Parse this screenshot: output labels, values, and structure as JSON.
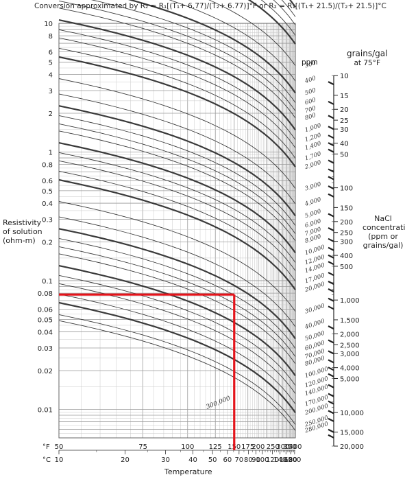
{
  "title": "Conversion approximated by R₂ = R₁[(T₁+ 6.77)/(T₂+ 6.77)]°F or R₂ = R₁[(T₁+ 21.5)/(T₂+ 21.5)]°C",
  "labels": {
    "ylabel": [
      "Resistivity",
      "of solution",
      "(ohm-m)"
    ],
    "xlabel": "Temperature",
    "right_axis_label": [
      "NaCl",
      "concentration",
      "(ppm or",
      "grains/gal)"
    ],
    "grains_head": "grains/gal",
    "grains_sub": "at 75°F",
    "ppm_head": "ppm",
    "f_unit": "°F",
    "c_unit": "°C"
  },
  "colors": {
    "highlight": "#e4141b",
    "curve": "#3a3a3a",
    "grid_minor": "#c9c9c9",
    "grid_major": "#9a9a9a"
  },
  "chart_data": {
    "type": "line",
    "x_scale": "reciprocal (1/(T+6.77))",
    "y_scale": "log",
    "xlabel": "Temperature",
    "ylabel": "Resistivity of solution (ohm-m)",
    "xlim_F": [
      50,
      400
    ],
    "ylim": [
      0.006,
      10
    ],
    "grid": true,
    "y_ticks": [
      0.01,
      0.02,
      0.03,
      0.04,
      0.05,
      0.06,
      0.08,
      0.1,
      0.2,
      0.3,
      0.4,
      0.5,
      0.6,
      0.8,
      1,
      2,
      3,
      4,
      5,
      6,
      8,
      10
    ],
    "y_tick_labels": [
      "0.01",
      "0.02",
      "0.03",
      "0.04",
      "0.05",
      "0.06",
      "0.08",
      "0.1",
      "0.2",
      "0.3",
      "0.4",
      "0.5",
      "0.6",
      "0.8",
      "1",
      "2",
      "3",
      "4",
      "5",
      "6",
      "8",
      "10"
    ],
    "x_ticks_F": [
      50,
      75,
      100,
      125,
      150,
      175,
      200,
      250,
      300,
      350,
      400
    ],
    "x_ticks_C": [
      10,
      20,
      30,
      40,
      50,
      60,
      70,
      80,
      90,
      100,
      120,
      140,
      160,
      180,
      200
    ],
    "x_tick_labels_F": [
      "50",
      "75",
      "100",
      "125",
      "150",
      "175",
      "200",
      "250",
      "300",
      "350",
      "400"
    ],
    "x_tick_labels_C": [
      "10",
      "20",
      "30",
      "40",
      "50",
      "60",
      "70",
      "80",
      "90",
      "100",
      "120",
      "140",
      "160",
      "180",
      "200"
    ],
    "series_ppm": [
      200,
      300,
      400,
      500,
      600,
      700,
      800,
      1000,
      1200,
      1400,
      1700,
      2000,
      3000,
      4000,
      5000,
      6000,
      7000,
      8000,
      10000,
      12000,
      14000,
      17000,
      20000,
      30000,
      40000,
      50000,
      60000,
      70000,
      80000,
      100000,
      120000,
      140000,
      170000,
      200000,
      250000,
      280000
    ],
    "series_labels": [
      "200",
      "300",
      "400",
      "500",
      "600",
      "700",
      "800",
      "1,000",
      "1,200",
      "1,400",
      "1,700",
      "2,000",
      "3,000",
      "4,000",
      "5,000",
      "6,000",
      "7,000",
      "8,000",
      "10,000",
      "12,000",
      "14,000",
      "17,000",
      "20,000",
      "30,000",
      "40,000",
      "50,000",
      "60,000",
      "70,000",
      "80,000",
      "100,000",
      "120,000",
      "140,000",
      "170,000",
      "200,000",
      "250,000",
      "280,000"
    ],
    "inline_label": "300,000",
    "grains_ticks": [
      10,
      15,
      20,
      25,
      30,
      40,
      50,
      100,
      150,
      200,
      250,
      300,
      400,
      500,
      1000,
      1500,
      2000,
      2500,
      3000,
      4000,
      5000,
      10000,
      15000,
      20000
    ],
    "grains_tick_labels": [
      "10",
      "15",
      "20",
      "25",
      "30",
      "40",
      "50",
      "100",
      "150",
      "200",
      "250",
      "300",
      "400",
      "500",
      "1,000",
      "1,500",
      "2,000",
      "2,500",
      "3,000",
      "4,000",
      "5,000",
      "10,000",
      "15,000",
      "20,000"
    ],
    "example_path": {
      "x_F": 150,
      "y": 0.078
    }
  }
}
